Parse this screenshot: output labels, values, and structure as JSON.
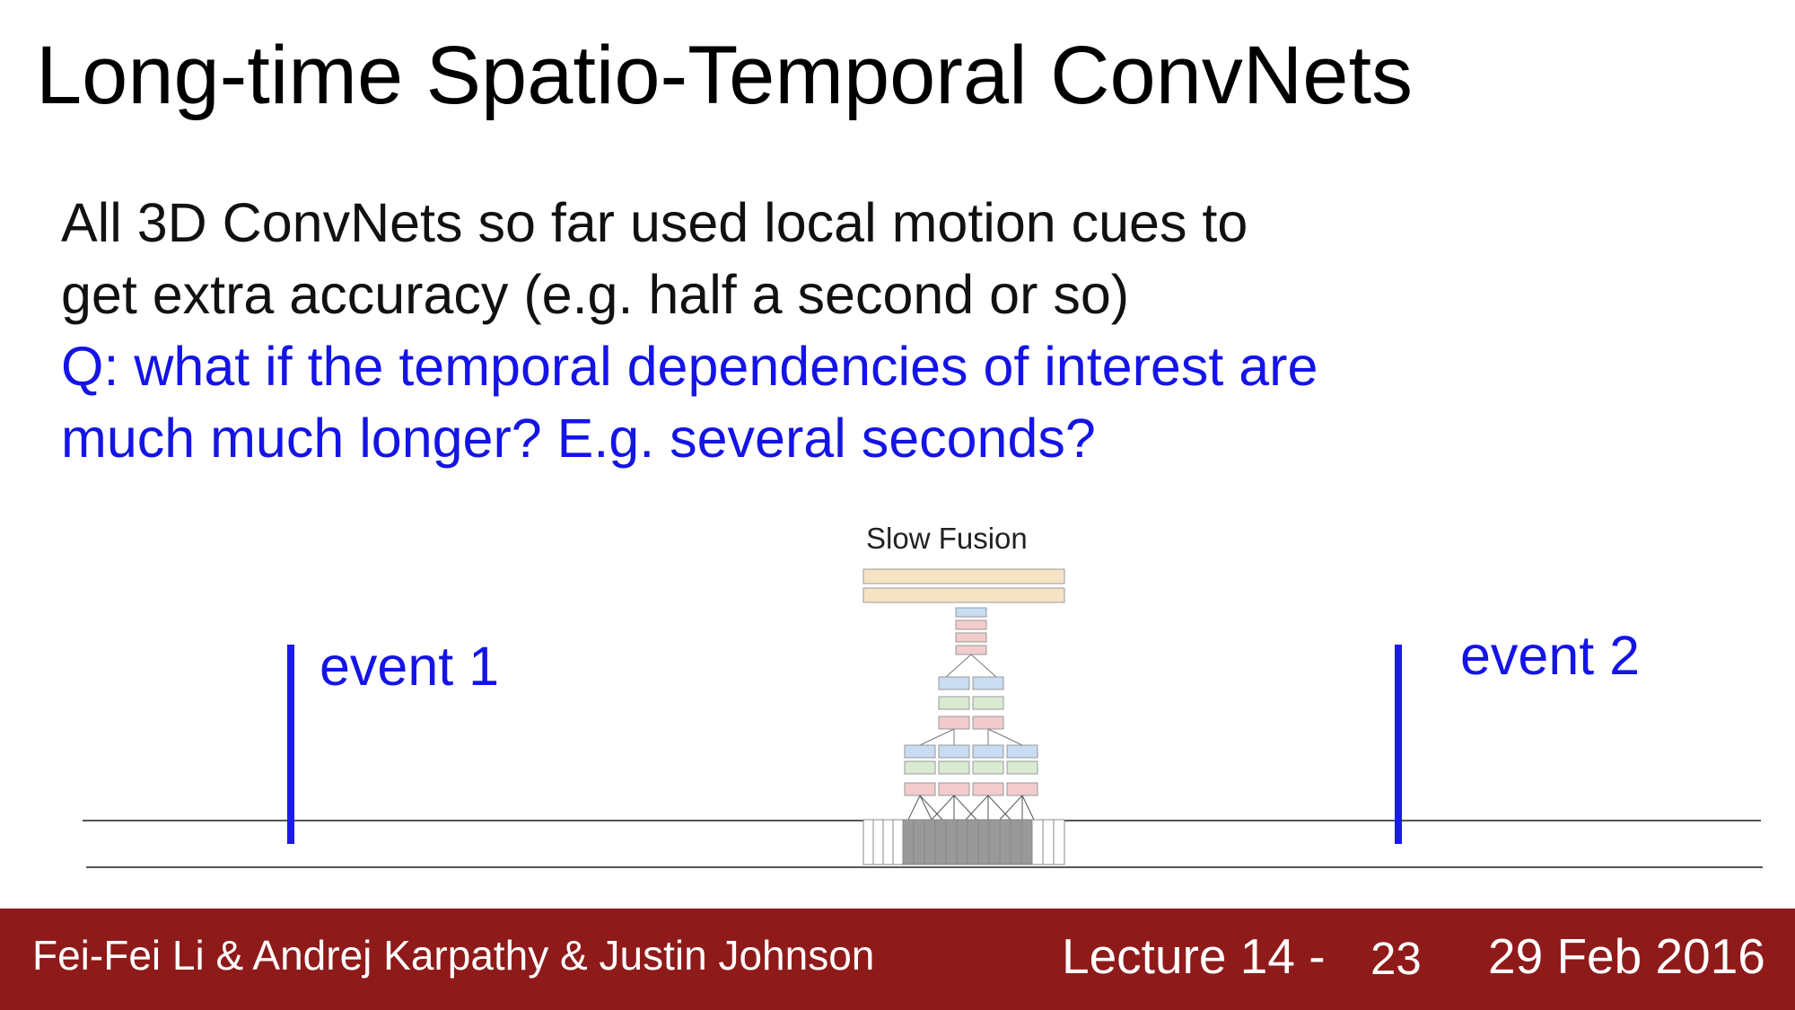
{
  "slide": {
    "title": "Long-time Spatio-Temporal ConvNets",
    "lines": [
      "All 3D ConvNets so far used local motion cues to",
      "get extra accuracy (e.g. half a second or so)",
      "Q: what if the temporal dependencies of interest are",
      "much much longer? E.g. several seconds?"
    ]
  },
  "diagram": {
    "title": "Slow Fusion",
    "event1": "event 1",
    "event2": "event 2",
    "colors": {
      "fc": "#f6e3c4",
      "blue": "#c8dcf2",
      "green": "#d9ead3",
      "red": "#f2cccc",
      "frame_active": "#999999",
      "accent": "#1414e6"
    }
  },
  "footer": {
    "authors": "Fei-Fei Li & Andrej Karpathy & Justin Johnson",
    "lecture": "Lecture 14 -",
    "page": "23",
    "date": "29 Feb 2016",
    "background": "#8f1a1a"
  }
}
